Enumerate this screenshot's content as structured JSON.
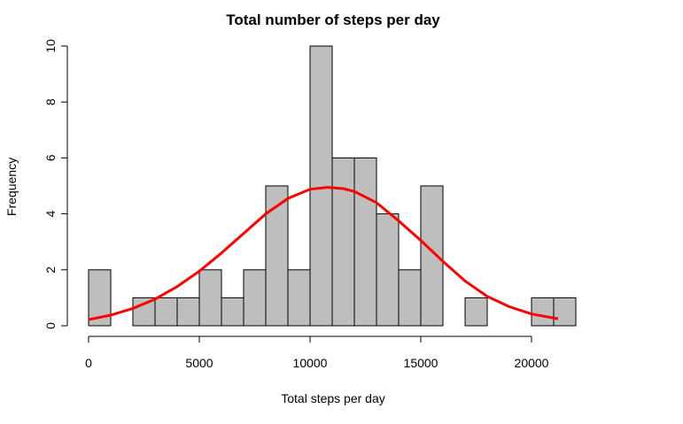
{
  "chart_data": {
    "type": "bar",
    "title": "Total number of steps per day",
    "xlabel": "Total steps per day",
    "ylabel": "Frequency",
    "bin_width": 1000,
    "bins": [
      {
        "start": 0,
        "end": 1000,
        "count": 2
      },
      {
        "start": 1000,
        "end": 2000,
        "count": 0
      },
      {
        "start": 2000,
        "end": 3000,
        "count": 1
      },
      {
        "start": 3000,
        "end": 4000,
        "count": 1
      },
      {
        "start": 4000,
        "end": 5000,
        "count": 1
      },
      {
        "start": 5000,
        "end": 6000,
        "count": 2
      },
      {
        "start": 6000,
        "end": 7000,
        "count": 1
      },
      {
        "start": 7000,
        "end": 8000,
        "count": 2
      },
      {
        "start": 8000,
        "end": 9000,
        "count": 5
      },
      {
        "start": 9000,
        "end": 10000,
        "count": 2
      },
      {
        "start": 10000,
        "end": 11000,
        "count": 10
      },
      {
        "start": 11000,
        "end": 12000,
        "count": 6
      },
      {
        "start": 12000,
        "end": 13000,
        "count": 6
      },
      {
        "start": 13000,
        "end": 14000,
        "count": 4
      },
      {
        "start": 14000,
        "end": 15000,
        "count": 2
      },
      {
        "start": 15000,
        "end": 16000,
        "count": 5
      },
      {
        "start": 16000,
        "end": 17000,
        "count": 0
      },
      {
        "start": 17000,
        "end": 18000,
        "count": 1
      },
      {
        "start": 18000,
        "end": 19000,
        "count": 0
      },
      {
        "start": 19000,
        "end": 20000,
        "count": 0
      },
      {
        "start": 20000,
        "end": 21000,
        "count": 1
      },
      {
        "start": 21000,
        "end": 22000,
        "count": 1
      }
    ],
    "density_curve": {
      "color": "#ff0000",
      "points": [
        [
          0,
          0.22
        ],
        [
          1000,
          0.38
        ],
        [
          2000,
          0.62
        ],
        [
          3000,
          0.95
        ],
        [
          4000,
          1.4
        ],
        [
          5000,
          1.95
        ],
        [
          6000,
          2.6
        ],
        [
          7000,
          3.3
        ],
        [
          8000,
          4.0
        ],
        [
          9000,
          4.55
        ],
        [
          10000,
          4.88
        ],
        [
          10800,
          4.95
        ],
        [
          11500,
          4.9
        ],
        [
          12000,
          4.8
        ],
        [
          13000,
          4.4
        ],
        [
          14000,
          3.75
        ],
        [
          15000,
          3.05
        ],
        [
          16000,
          2.3
        ],
        [
          17000,
          1.6
        ],
        [
          18000,
          1.05
        ],
        [
          19000,
          0.68
        ],
        [
          20000,
          0.42
        ],
        [
          21200,
          0.25
        ]
      ]
    },
    "xlim": [
      0,
      22000
    ],
    "ylim": [
      0,
      10
    ],
    "x_ticks": [
      0,
      5000,
      10000,
      15000,
      20000
    ],
    "x_tick_labels": [
      "0",
      "5000",
      "10000",
      "15000",
      "20000"
    ],
    "y_ticks": [
      0,
      2,
      4,
      6,
      8,
      10
    ],
    "y_tick_labels": [
      "0",
      "2",
      "4",
      "6",
      "8",
      "10"
    ],
    "bar_color": "#bebebe",
    "grid": false,
    "legend": "none"
  }
}
